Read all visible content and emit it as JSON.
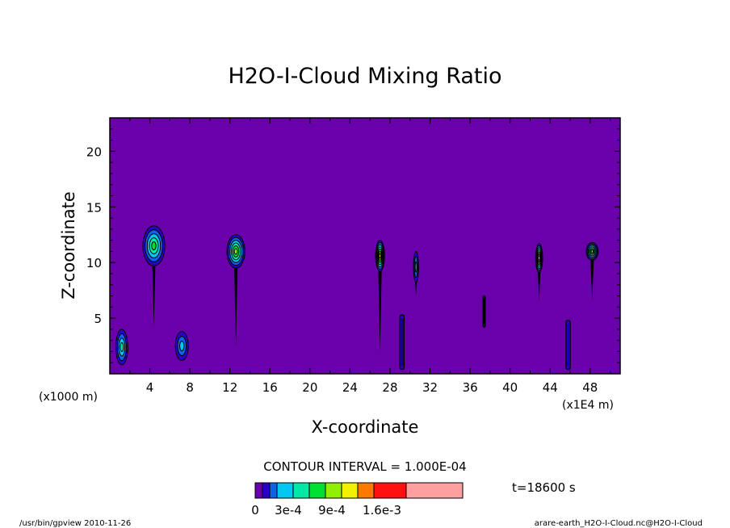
{
  "chart_data": {
    "type": "heatmap",
    "title": "H2O-I-Cloud Mixing Ratio",
    "xlabel": "X-coordinate",
    "ylabel": "Z-coordinate",
    "x_unit_left": "(x1000 m)",
    "x_unit_right": "(x1E4 m)",
    "x_ticks": [
      "4",
      "8",
      "12",
      "16",
      "20",
      "24",
      "28",
      "32",
      "36",
      "40",
      "44",
      "48"
    ],
    "y_ticks": [
      "5",
      "10",
      "15",
      "20"
    ],
    "xlim": [
      0,
      51
    ],
    "ylim": [
      0,
      23
    ],
    "contour_interval_label": "CONTOUR INTERVAL = 1.000E-04",
    "time_label": "t=18600 s",
    "colorbar": {
      "levels": [
        0,
        0.0001,
        0.0002,
        0.0003,
        0.0004,
        0.0005,
        0.0006,
        0.0007,
        0.0008,
        0.0009,
        0.0011,
        0.0016
      ],
      "labels": [
        "0",
        "3e-4",
        "9e-4",
        "1.6e-3"
      ],
      "colors": [
        "#6a00b0",
        "#2a00c8",
        "#1060e8",
        "#00c8f0",
        "#00e8a8",
        "#00e030",
        "#90f000",
        "#f0f000",
        "#ff7800",
        "#ff1010",
        "#ffa0a0"
      ]
    },
    "background_color": "#6a00aa",
    "clouds": [
      {
        "x": 4.4,
        "z": 11.5,
        "w": 2.2,
        "h": 3.6,
        "level": 4,
        "stalk_bottom": 4.2
      },
      {
        "x": 12.6,
        "z": 11.0,
        "w": 1.8,
        "h": 3.0,
        "level": 5,
        "stalk_bottom": 2.5
      },
      {
        "x": 27.0,
        "z": 10.6,
        "w": 0.9,
        "h": 2.8,
        "level": 6,
        "stalk_bottom": 2.0
      },
      {
        "x": 30.6,
        "z": 9.6,
        "w": 0.5,
        "h": 2.8,
        "level": 2,
        "stalk_bottom": 7.0
      },
      {
        "x": 42.9,
        "z": 10.4,
        "w": 0.7,
        "h": 2.6,
        "level": 6,
        "stalk_bottom": 6.5
      },
      {
        "x": 48.2,
        "z": 11.0,
        "w": 1.2,
        "h": 1.6,
        "level": 5,
        "stalk_bottom": 6.6
      }
    ],
    "columns": [
      {
        "x": 29.2,
        "z_bottom": 0.4,
        "z_top": 5.3,
        "w": 0.4
      },
      {
        "x": 45.8,
        "z_bottom": 0.4,
        "z_top": 4.8,
        "w": 0.4
      },
      {
        "x": 37.4,
        "z_bottom": 4.2,
        "z_top": 7.0,
        "w": 0.2
      }
    ],
    "low_clouds": [
      {
        "x": 1.2,
        "z": 2.4,
        "w": 1.2,
        "h": 3.2,
        "level": 3
      },
      {
        "x": 7.2,
        "z": 2.5,
        "w": 1.3,
        "h": 2.6,
        "level": 2
      }
    ]
  },
  "footer": {
    "left": "/usr/bin/gpview  2010-11-26",
    "right": "arare-earth_H2O-I-Cloud.nc@H2O-I-Cloud"
  }
}
